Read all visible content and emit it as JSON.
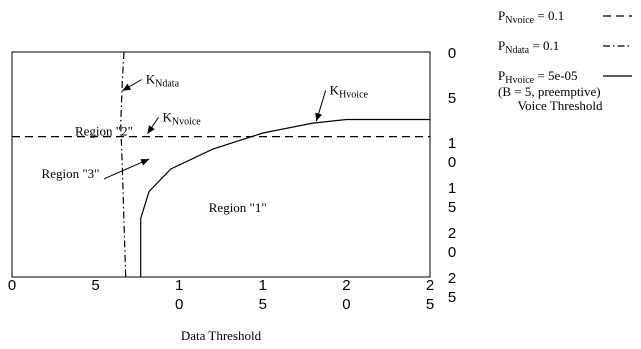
{
  "chart_data": {
    "type": "line",
    "xlabel": "Data Threshold",
    "ylabel": "Voice Threshold",
    "xlim": [
      0,
      25
    ],
    "ylim": [
      0,
      25
    ],
    "x_ticks": [
      {
        "value": 0,
        "lines": [
          "0"
        ]
      },
      {
        "value": 5,
        "lines": [
          "5"
        ]
      },
      {
        "value": 10,
        "lines": [
          "1",
          "0"
        ]
      },
      {
        "value": 15,
        "lines": [
          "1",
          "5"
        ]
      },
      {
        "value": 20,
        "lines": [
          "2",
          "0"
        ]
      },
      {
        "value": 25,
        "lines": [
          "2",
          "5"
        ]
      }
    ],
    "y_ticks": [
      {
        "value": 25,
        "lines": [
          "0"
        ]
      },
      {
        "value": 20,
        "lines": [
          "5"
        ]
      },
      {
        "value": 15,
        "lines": [
          "1",
          "0"
        ]
      },
      {
        "value": 10,
        "lines": [
          "1",
          "5"
        ]
      },
      {
        "value": 5,
        "lines": [
          "2",
          "0"
        ]
      },
      {
        "value": 0,
        "lines": [
          "2",
          "5"
        ]
      }
    ],
    "legend": [
      {
        "label_main": "P",
        "label_sub": "Nvoice",
        "label_rest": " = 0.1",
        "style": "dashed"
      },
      {
        "label_main": "P",
        "label_sub": "Ndata",
        "label_rest": " = 0.1",
        "style": "dashdot"
      },
      {
        "label_main": "P",
        "label_sub": "Hvoice",
        "label_rest": " = 5e-05",
        "style": "solid",
        "extra": "(B = 5, preemptive)"
      }
    ],
    "series": [
      {
        "name": "K_Nvoice",
        "style": "dashed",
        "points": [
          [
            0,
            15.6
          ],
          [
            25,
            15.6
          ]
        ]
      },
      {
        "name": "K_Ndata",
        "style": "dashdot",
        "points": [
          [
            6.7,
            25
          ],
          [
            6.6,
            22
          ],
          [
            6.5,
            17
          ],
          [
            6.6,
            12
          ],
          [
            6.7,
            6
          ],
          [
            6.8,
            0
          ]
        ]
      },
      {
        "name": "K_Hvoice",
        "style": "solid",
        "points": [
          [
            7.7,
            0
          ],
          [
            7.7,
            6.5
          ],
          [
            8.2,
            9.5
          ],
          [
            9.5,
            12
          ],
          [
            12,
            14.2
          ],
          [
            15,
            16
          ],
          [
            18,
            17.1
          ],
          [
            20,
            17.5
          ],
          [
            25,
            17.5
          ]
        ]
      }
    ],
    "annotations": [
      {
        "kind": "region",
        "text": "Region \"1\"",
        "at": [
          13.5,
          7.2
        ]
      },
      {
        "kind": "region",
        "text": "Region \"2\"",
        "at": [
          5.5,
          15.7
        ]
      },
      {
        "kind": "region",
        "text": "Region \"3\"",
        "at": [
          3.5,
          11
        ]
      },
      {
        "kind": "label",
        "main": "K",
        "sub": "Ndata",
        "at": [
          8,
          21.5
        ],
        "arrow_to": [
          6.6,
          20.7
        ]
      },
      {
        "kind": "label",
        "main": "K",
        "sub": "Nvoice",
        "at": [
          9,
          17.3
        ],
        "arrow_to": [
          8.1,
          15.9
        ]
      },
      {
        "kind": "label",
        "main": "K",
        "sub": "Hvoice",
        "at": [
          19,
          20.3
        ],
        "arrow_to": [
          18.2,
          17.3
        ]
      },
      {
        "kind": "arrow",
        "from": [
          5.5,
          10.9
        ],
        "to": [
          8.2,
          13.1
        ]
      }
    ]
  }
}
